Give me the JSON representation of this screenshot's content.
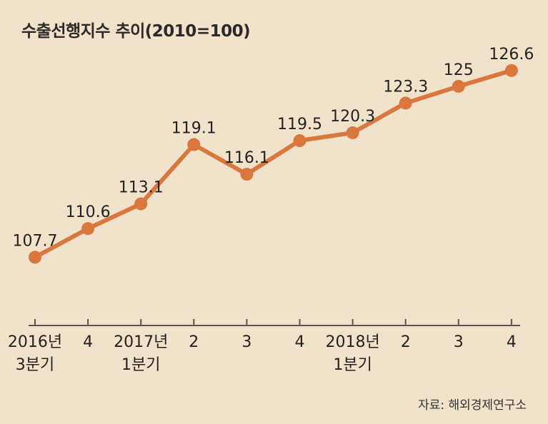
{
  "title": "수출선행지수 추이(2010=100)",
  "source": "자료: 해외경제연구소",
  "chart_data": {
    "type": "line",
    "title": "수출선행지수 추이(2010=100)",
    "categories": [
      [
        "2016년",
        "3분기"
      ],
      [
        "4"
      ],
      [
        "2017년",
        "1분기"
      ],
      [
        "2"
      ],
      [
        "3"
      ],
      [
        "4"
      ],
      [
        "2018년",
        "1분기"
      ],
      [
        "2"
      ],
      [
        "3"
      ],
      [
        "4"
      ]
    ],
    "values": [
      107.7,
      110.6,
      113.1,
      119.1,
      116.1,
      119.5,
      120.3,
      123.3,
      125,
      126.6
    ],
    "value_labels": [
      "107.7",
      "110.6",
      "113.1",
      "119.1",
      "116.1",
      "119.5",
      "120.3",
      "123.3",
      "125",
      "126.6"
    ],
    "ylim": [
      100.5,
      129.4
    ],
    "grid": false,
    "line_color": "#d9773c",
    "axis_color": "#555555"
  }
}
